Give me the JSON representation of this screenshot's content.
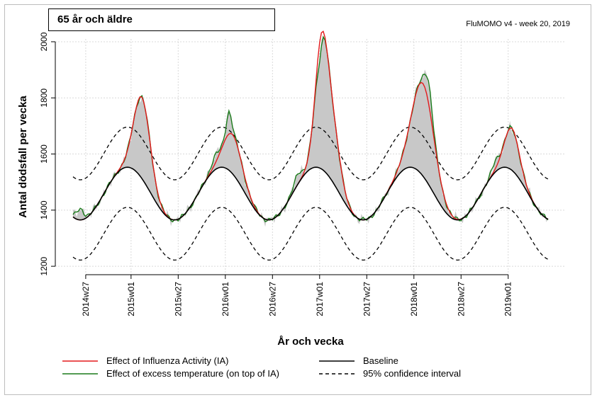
{
  "header": {
    "title": "65 år och äldre",
    "source": "FluMOMO v4 - week 20, 2019"
  },
  "colors": {
    "ia": "#e31a1c",
    "temp": "#1a7a1a",
    "baseline": "#000000",
    "ci": "#000000",
    "observed_fill": "#c8c8c8"
  },
  "chart_data": {
    "type": "line",
    "xlabel": "År och vecka",
    "ylabel": "Antal dödsfall per vecka",
    "ylim": [
      1170,
      2010
    ],
    "yticks": [
      1200,
      1400,
      1600,
      1800,
      2000
    ],
    "x_start_week": "2014w20",
    "x_end_week": "2019w20",
    "xticks": [
      {
        "label": "2014w27",
        "index": 7
      },
      {
        "label": "2015w01",
        "index": 32
      },
      {
        "label": "2015w27",
        "index": 58
      },
      {
        "label": "2016w01",
        "index": 84
      },
      {
        "label": "2016w27",
        "index": 110
      },
      {
        "label": "2017w01",
        "index": 136
      },
      {
        "label": "2017w27",
        "index": 162
      },
      {
        "label": "2018w01",
        "index": 188
      },
      {
        "label": "2018w27",
        "index": 214
      },
      {
        "label": "2019w01",
        "index": 240
      }
    ],
    "baseline_model": {
      "trough_week_index": 4,
      "season_length_weeks": 52,
      "trough_value": 1365,
      "peak_value": 1553,
      "ci_half_width": 143
    },
    "ia_peaks": [
      {
        "center": 38,
        "height": 290,
        "width": 4.5
      },
      {
        "center": 88,
        "height": 140,
        "width": 5
      },
      {
        "center": 137,
        "height": 420,
        "width": 3.5
      },
      {
        "center": 143,
        "height": 200,
        "width": 4
      },
      {
        "center": 193,
        "height": 330,
        "width": 6
      },
      {
        "center": 242,
        "height": 150,
        "width": 4
      }
    ],
    "temp_events": [
      {
        "center": 4,
        "height": 40,
        "width": 2
      },
      {
        "center": 78,
        "height": 30,
        "width": 2
      },
      {
        "center": 86,
        "height": 80,
        "width": 1.5
      },
      {
        "center": 124,
        "height": 40,
        "width": 2
      },
      {
        "center": 136,
        "height": -60,
        "width": 1.5
      },
      {
        "center": 196,
        "height": 80,
        "width": 2
      },
      {
        "center": 233,
        "height": 30,
        "width": 2
      }
    ],
    "legend": [
      {
        "key": "ia",
        "label": "Effect of Influenza Activity (IA)"
      },
      {
        "key": "temp",
        "label": "Effect of excess temperature (on top of IA)"
      },
      {
        "key": "baseline",
        "label": "Baseline"
      },
      {
        "key": "ci",
        "label": "95% confidence interval"
      }
    ],
    "grid": true,
    "legend_position": "bottom"
  }
}
